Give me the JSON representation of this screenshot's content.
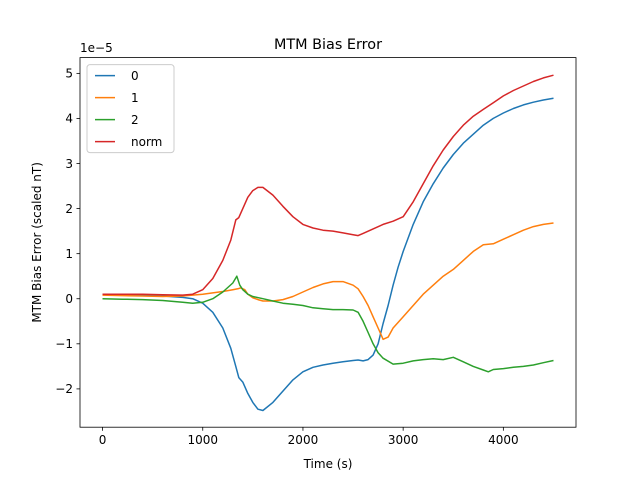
{
  "chart_data": {
    "type": "line",
    "title": "MTM Bias Error",
    "xlabel": "Time (s)",
    "ylabel": "MTM Bias Error (scaled nT)",
    "y_scale_label": "1e−5",
    "xlim": [
      -225,
      4725
    ],
    "ylim": [
      -2.85,
      5.35
    ],
    "x_ticks": [
      0,
      1000,
      2000,
      3000,
      4000
    ],
    "x_tick_labels": [
      "0",
      "1000",
      "2000",
      "3000",
      "4000"
    ],
    "y_ticks": [
      -2,
      -1,
      0,
      1,
      2,
      3,
      4,
      5
    ],
    "y_tick_labels": [
      "−2",
      "−1",
      "0",
      "1",
      "2",
      "3",
      "4",
      "5"
    ],
    "grid": false,
    "legend_position": "top-left",
    "series": [
      {
        "name": "0",
        "color": "#1f77b4",
        "points": [
          [
            0,
            0.1
          ],
          [
            200,
            0.09
          ],
          [
            400,
            0.08
          ],
          [
            600,
            0.06
          ],
          [
            800,
            0.03
          ],
          [
            900,
            0.0
          ],
          [
            1000,
            -0.1
          ],
          [
            1100,
            -0.3
          ],
          [
            1200,
            -0.65
          ],
          [
            1280,
            -1.1
          ],
          [
            1330,
            -1.5
          ],
          [
            1360,
            -1.75
          ],
          [
            1400,
            -1.85
          ],
          [
            1450,
            -2.1
          ],
          [
            1500,
            -2.3
          ],
          [
            1550,
            -2.45
          ],
          [
            1600,
            -2.48
          ],
          [
            1700,
            -2.3
          ],
          [
            1800,
            -2.05
          ],
          [
            1900,
            -1.8
          ],
          [
            2000,
            -1.62
          ],
          [
            2100,
            -1.52
          ],
          [
            2200,
            -1.47
          ],
          [
            2300,
            -1.43
          ],
          [
            2400,
            -1.4
          ],
          [
            2500,
            -1.37
          ],
          [
            2550,
            -1.36
          ],
          [
            2600,
            -1.38
          ],
          [
            2650,
            -1.35
          ],
          [
            2700,
            -1.25
          ],
          [
            2750,
            -1.0
          ],
          [
            2800,
            -0.55
          ],
          [
            2850,
            -0.15
          ],
          [
            2900,
            0.3
          ],
          [
            2950,
            0.7
          ],
          [
            3000,
            1.05
          ],
          [
            3100,
            1.65
          ],
          [
            3200,
            2.15
          ],
          [
            3300,
            2.55
          ],
          [
            3400,
            2.9
          ],
          [
            3500,
            3.2
          ],
          [
            3600,
            3.45
          ],
          [
            3700,
            3.65
          ],
          [
            3800,
            3.85
          ],
          [
            3900,
            4.0
          ],
          [
            4000,
            4.12
          ],
          [
            4100,
            4.22
          ],
          [
            4200,
            4.3
          ],
          [
            4300,
            4.36
          ],
          [
            4400,
            4.41
          ],
          [
            4500,
            4.45
          ]
        ]
      },
      {
        "name": "1",
        "color": "#ff7f0e",
        "points": [
          [
            0,
            0.08
          ],
          [
            200,
            0.07
          ],
          [
            400,
            0.06
          ],
          [
            600,
            0.05
          ],
          [
            800,
            0.06
          ],
          [
            1000,
            0.1
          ],
          [
            1200,
            0.16
          ],
          [
            1300,
            0.2
          ],
          [
            1350,
            0.22
          ],
          [
            1380,
            0.24
          ],
          [
            1420,
            0.2
          ],
          [
            1450,
            0.1
          ],
          [
            1500,
            0.02
          ],
          [
            1550,
            -0.02
          ],
          [
            1600,
            -0.05
          ],
          [
            1700,
            -0.05
          ],
          [
            1800,
            -0.02
          ],
          [
            1900,
            0.05
          ],
          [
            2000,
            0.15
          ],
          [
            2100,
            0.25
          ],
          [
            2200,
            0.33
          ],
          [
            2300,
            0.38
          ],
          [
            2400,
            0.38
          ],
          [
            2500,
            0.3
          ],
          [
            2550,
            0.22
          ],
          [
            2600,
            0.05
          ],
          [
            2650,
            -0.15
          ],
          [
            2700,
            -0.4
          ],
          [
            2750,
            -0.65
          ],
          [
            2800,
            -0.9
          ],
          [
            2850,
            -0.85
          ],
          [
            2900,
            -0.65
          ],
          [
            3000,
            -0.4
          ],
          [
            3100,
            -0.15
          ],
          [
            3200,
            0.1
          ],
          [
            3300,
            0.3
          ],
          [
            3400,
            0.5
          ],
          [
            3500,
            0.65
          ],
          [
            3600,
            0.85
          ],
          [
            3700,
            1.05
          ],
          [
            3800,
            1.2
          ],
          [
            3900,
            1.22
          ],
          [
            4000,
            1.32
          ],
          [
            4100,
            1.42
          ],
          [
            4200,
            1.52
          ],
          [
            4300,
            1.6
          ],
          [
            4400,
            1.65
          ],
          [
            4500,
            1.68
          ]
        ]
      },
      {
        "name": "2",
        "color": "#2ca02c",
        "points": [
          [
            0,
            0.0
          ],
          [
            200,
            -0.01
          ],
          [
            400,
            -0.02
          ],
          [
            600,
            -0.04
          ],
          [
            800,
            -0.08
          ],
          [
            900,
            -0.1
          ],
          [
            1000,
            -0.08
          ],
          [
            1100,
            0.0
          ],
          [
            1200,
            0.15
          ],
          [
            1300,
            0.35
          ],
          [
            1340,
            0.5
          ],
          [
            1370,
            0.3
          ],
          [
            1400,
            0.2
          ],
          [
            1450,
            0.1
          ],
          [
            1500,
            0.05
          ],
          [
            1600,
            0.0
          ],
          [
            1700,
            -0.05
          ],
          [
            1800,
            -0.1
          ],
          [
            1900,
            -0.12
          ],
          [
            2000,
            -0.15
          ],
          [
            2100,
            -0.2
          ],
          [
            2200,
            -0.22
          ],
          [
            2300,
            -0.24
          ],
          [
            2400,
            -0.24
          ],
          [
            2500,
            -0.25
          ],
          [
            2550,
            -0.3
          ],
          [
            2600,
            -0.5
          ],
          [
            2650,
            -0.75
          ],
          [
            2700,
            -1.0
          ],
          [
            2750,
            -1.2
          ],
          [
            2800,
            -1.32
          ],
          [
            2900,
            -1.45
          ],
          [
            3000,
            -1.43
          ],
          [
            3100,
            -1.38
          ],
          [
            3200,
            -1.35
          ],
          [
            3300,
            -1.33
          ],
          [
            3400,
            -1.35
          ],
          [
            3500,
            -1.3
          ],
          [
            3600,
            -1.4
          ],
          [
            3700,
            -1.5
          ],
          [
            3800,
            -1.58
          ],
          [
            3850,
            -1.62
          ],
          [
            3900,
            -1.57
          ],
          [
            4000,
            -1.55
          ],
          [
            4100,
            -1.52
          ],
          [
            4200,
            -1.5
          ],
          [
            4300,
            -1.47
          ],
          [
            4400,
            -1.42
          ],
          [
            4500,
            -1.37
          ]
        ]
      },
      {
        "name": "norm",
        "color": "#d62728",
        "points": [
          [
            0,
            0.1
          ],
          [
            200,
            0.1
          ],
          [
            400,
            0.1
          ],
          [
            600,
            0.09
          ],
          [
            800,
            0.08
          ],
          [
            900,
            0.1
          ],
          [
            1000,
            0.2
          ],
          [
            1100,
            0.45
          ],
          [
            1200,
            0.85
          ],
          [
            1280,
            1.3
          ],
          [
            1330,
            1.75
          ],
          [
            1360,
            1.8
          ],
          [
            1400,
            2.0
          ],
          [
            1450,
            2.25
          ],
          [
            1500,
            2.4
          ],
          [
            1550,
            2.47
          ],
          [
            1600,
            2.47
          ],
          [
            1700,
            2.3
          ],
          [
            1800,
            2.05
          ],
          [
            1900,
            1.82
          ],
          [
            2000,
            1.65
          ],
          [
            2100,
            1.57
          ],
          [
            2200,
            1.52
          ],
          [
            2300,
            1.5
          ],
          [
            2400,
            1.46
          ],
          [
            2500,
            1.42
          ],
          [
            2550,
            1.4
          ],
          [
            2600,
            1.45
          ],
          [
            2700,
            1.55
          ],
          [
            2800,
            1.65
          ],
          [
            2900,
            1.72
          ],
          [
            3000,
            1.82
          ],
          [
            3100,
            2.15
          ],
          [
            3200,
            2.55
          ],
          [
            3300,
            2.95
          ],
          [
            3400,
            3.3
          ],
          [
            3500,
            3.6
          ],
          [
            3600,
            3.85
          ],
          [
            3700,
            4.05
          ],
          [
            3800,
            4.2
          ],
          [
            3900,
            4.35
          ],
          [
            4000,
            4.5
          ],
          [
            4100,
            4.62
          ],
          [
            4200,
            4.72
          ],
          [
            4300,
            4.82
          ],
          [
            4400,
            4.9
          ],
          [
            4500,
            4.96
          ]
        ]
      }
    ]
  }
}
